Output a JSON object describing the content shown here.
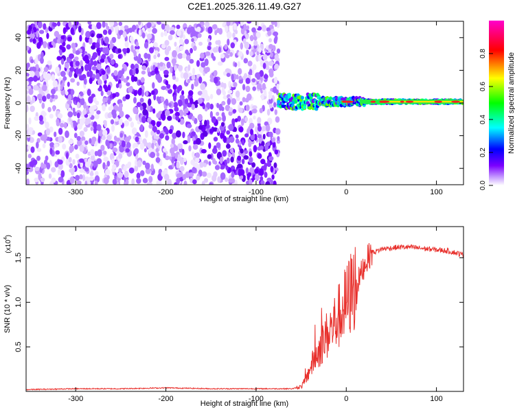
{
  "title": "C2E1.2025.326.11.49.G27",
  "chart_data": [
    {
      "type": "heatmap",
      "name": "spectrogram",
      "xlabel": "Height of straight line (km)",
      "ylabel": "Frequency (Hz)",
      "xlim": [
        -355,
        130
      ],
      "ylim": [
        -50,
        50
      ],
      "xticks": [
        -300,
        -200,
        -100,
        0,
        100
      ],
      "xtick_labels": [
        "-300",
        "-200",
        "-100",
        "0",
        "100"
      ],
      "yticks": [
        -40,
        -20,
        0,
        20,
        40
      ],
      "ytick_labels": [
        "-40",
        "-20",
        "0",
        "20",
        "40"
      ],
      "noise_region_km": [
        -355,
        -75
      ],
      "signal_band": {
        "x_start_km": -75,
        "x_end_km": 130,
        "center_hz": 0.8,
        "width_hz": 5
      },
      "colorbar": {
        "label": "Normalized spectral amplitude",
        "range": [
          0,
          1
        ],
        "ticks": [
          0.0,
          0.2,
          0.4,
          0.6,
          0.8
        ],
        "tick_labels": [
          "0.0",
          "0.2",
          "0.4",
          "0.6",
          "0.8"
        ],
        "colors": [
          "#ffffff",
          "#7b00ff",
          "#0000ff",
          "#00ffff",
          "#00ff00",
          "#ffff00",
          "#ff0000",
          "#ff00cc"
        ]
      }
    },
    {
      "type": "line",
      "name": "snr",
      "xlabel": "Height of straight line (km)",
      "ylabel": "SNR (10 * v/v)",
      "scale_label": "(x10",
      "scale_exponent": "4",
      "xlim": [
        -355,
        130
      ],
      "ylim": [
        0,
        1.85
      ],
      "xticks": [
        -300,
        -200,
        -100,
        0,
        100
      ],
      "xtick_labels": [
        "-300",
        "-200",
        "-100",
        "0",
        "100"
      ],
      "yticks": [
        0.5,
        1.0,
        1.5
      ],
      "ytick_labels": [
        "0.5",
        "1.0",
        "1.5"
      ],
      "color": "#e8302c",
      "series": [
        {
          "name": "SNR",
          "x": [
            -355,
            -300,
            -250,
            -200,
            -150,
            -100,
            -60,
            -50,
            -45,
            -40,
            -35,
            -30,
            -25,
            -20,
            -15,
            -10,
            -5,
            0,
            5,
            10,
            15,
            20,
            25,
            30,
            35,
            40,
            50,
            60,
            70,
            80,
            90,
            100,
            110,
            120,
            130
          ],
          "y": [
            0.02,
            0.03,
            0.03,
            0.04,
            0.03,
            0.03,
            0.03,
            0.05,
            0.12,
            0.25,
            0.35,
            0.45,
            0.55,
            0.62,
            0.7,
            0.78,
            0.85,
            0.95,
            1.05,
            1.15,
            1.28,
            1.42,
            1.52,
            1.56,
            1.58,
            1.6,
            1.61,
            1.62,
            1.62,
            1.61,
            1.6,
            1.59,
            1.58,
            1.56,
            1.53
          ]
        }
      ]
    }
  ]
}
